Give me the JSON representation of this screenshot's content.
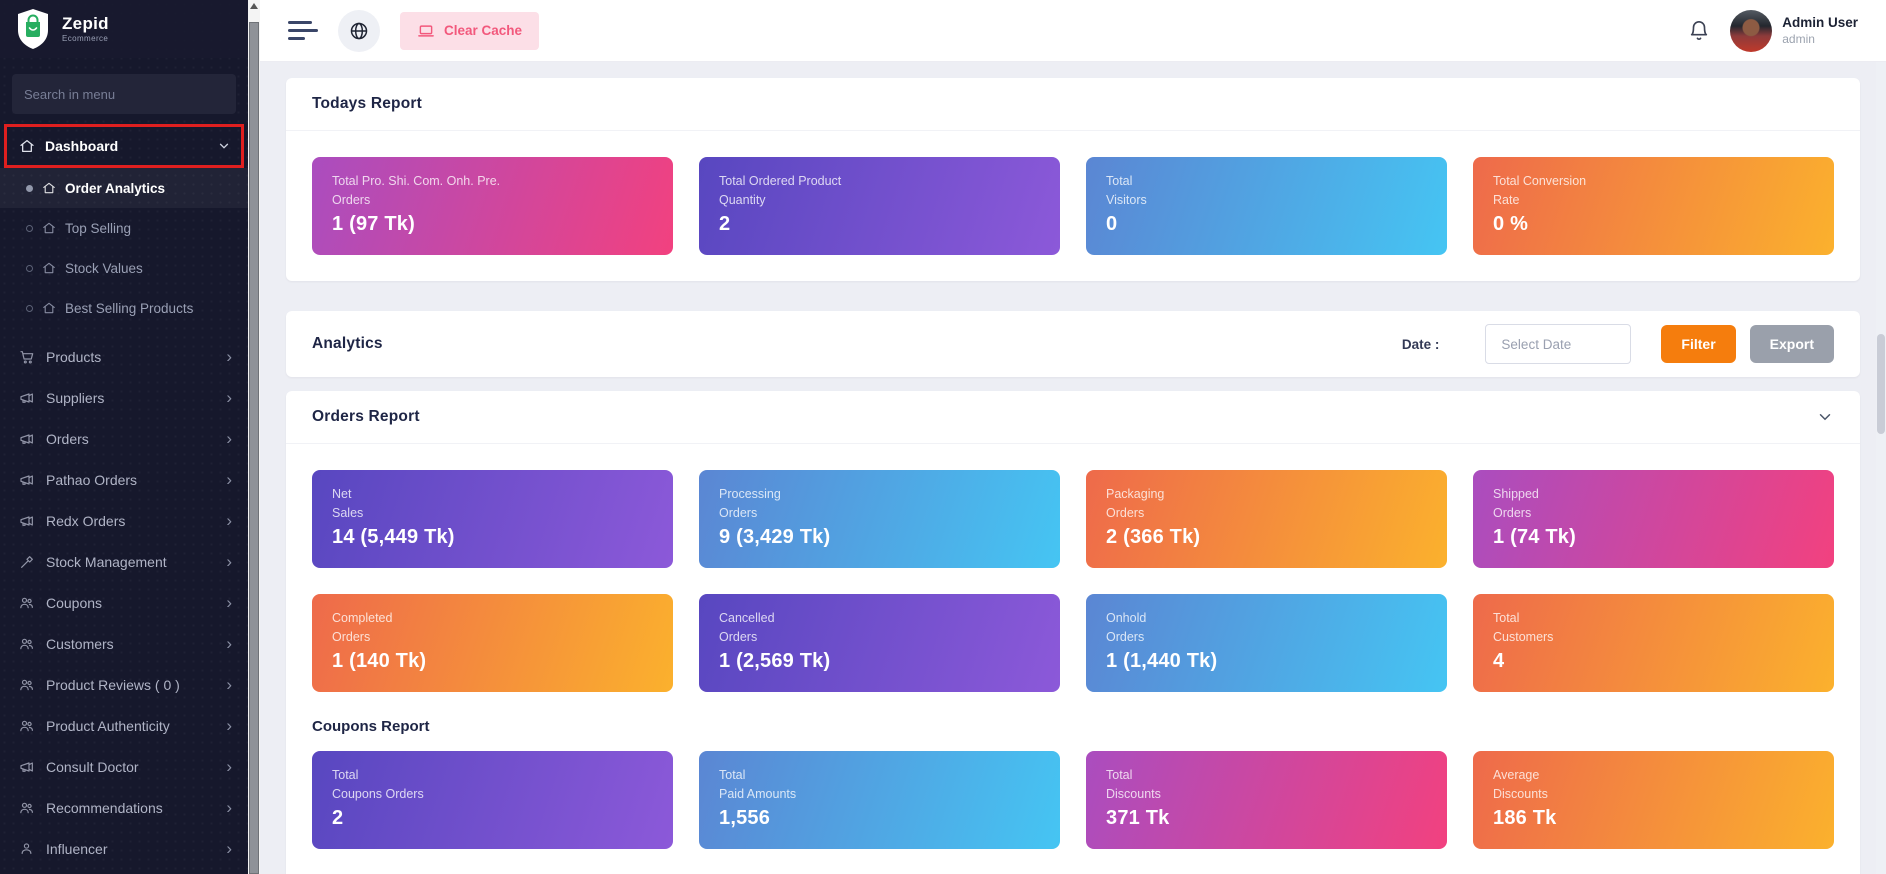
{
  "brand": {
    "name": "Zepid",
    "tagline": "Ecommerce"
  },
  "sidebar": {
    "search_placeholder": "Search in menu",
    "dashboard_label": "Dashboard",
    "dashboard_children": [
      {
        "label": "Order Analytics",
        "icon": "home-icon",
        "state": "active"
      },
      {
        "label": "Top Selling",
        "icon": "home-icon",
        "state": ""
      },
      {
        "label": "Stock Values",
        "icon": "home-icon",
        "state": ""
      },
      {
        "label": "Best Selling Products",
        "icon": "home-icon",
        "state": ""
      }
    ],
    "items": [
      {
        "label": "Products",
        "icon": "cart-icon"
      },
      {
        "label": "Suppliers",
        "icon": "megaphone-icon"
      },
      {
        "label": "Orders",
        "icon": "megaphone-icon"
      },
      {
        "label": "Pathao Orders",
        "icon": "megaphone-icon"
      },
      {
        "label": "Redx Orders",
        "icon": "megaphone-icon"
      },
      {
        "label": "Stock Management",
        "icon": "tool-icon"
      },
      {
        "label": "Coupons",
        "icon": "people-icon"
      },
      {
        "label": "Customers",
        "icon": "people-icon"
      },
      {
        "label": "Product Reviews ( 0 )",
        "icon": "people-icon"
      },
      {
        "label": "Product Authenticity",
        "icon": "people-icon"
      },
      {
        "label": "Consult Doctor",
        "icon": "megaphone-icon"
      },
      {
        "label": "Recommendations",
        "icon": "people-icon"
      },
      {
        "label": "Influencer",
        "icon": "person-icon"
      }
    ]
  },
  "topbar": {
    "clear_cache_label": "Clear Cache",
    "user_name": "Admin User",
    "user_role": "admin"
  },
  "todays_report": {
    "title": "Todays Report",
    "cards": [
      {
        "line1": "Total Pro. Shi. Com. Onh. Pre.",
        "line2": "Orders",
        "value": "1 (97 Tk)",
        "color": "g-pink"
      },
      {
        "line1": "Total Ordered Product",
        "line2": "Quantity",
        "value": "2",
        "color": "g-purple"
      },
      {
        "line1": "Total",
        "line2": "Visitors",
        "value": "0",
        "color": "g-blue"
      },
      {
        "line1": "Total Conversion",
        "line2": "Rate",
        "value": "0 %",
        "color": "g-orange"
      }
    ]
  },
  "analytics": {
    "title": "Analytics",
    "date_label": "Date :",
    "date_placeholder": "Select Date",
    "filter_label": "Filter",
    "export_label": "Export"
  },
  "orders_report": {
    "title": "Orders Report",
    "cards_row1": [
      {
        "line1": "Net",
        "line2": "Sales",
        "value": "14 (5,449 Tk)",
        "color": "g-purple"
      },
      {
        "line1": "Processing",
        "line2": "Orders",
        "value": "9 (3,429 Tk)",
        "color": "g-blue"
      },
      {
        "line1": "Packaging",
        "line2": "Orders",
        "value": "2 (366 Tk)",
        "color": "g-orange"
      },
      {
        "line1": "Shipped",
        "line2": "Orders",
        "value": "1 (74 Tk)",
        "color": "g-pink"
      }
    ],
    "cards_row2": [
      {
        "line1": "Completed",
        "line2": "Orders",
        "value": "1 (140 Tk)",
        "color": "g-orange"
      },
      {
        "line1": "Cancelled",
        "line2": "Orders",
        "value": "1 (2,569 Tk)",
        "color": "g-purple"
      },
      {
        "line1": "Onhold",
        "line2": "Orders",
        "value": "1 (1,440 Tk)",
        "color": "g-blue"
      },
      {
        "line1": "Total",
        "line2": "Customers",
        "value": "4",
        "color": "g-orange"
      }
    ]
  },
  "coupons_report": {
    "title": "Coupons Report",
    "cards": [
      {
        "line1": "Total",
        "line2": "Coupons Orders",
        "value": "2",
        "color": "g-purple"
      },
      {
        "line1": "Total",
        "line2": "Paid Amounts",
        "value": "1,556",
        "color": "g-blue"
      },
      {
        "line1": "Total",
        "line2": "Discounts",
        "value": "371 Tk",
        "color": "g-pink"
      },
      {
        "line1": "Average",
        "line2": "Discounts",
        "value": "186 Tk",
        "color": "g-orange"
      }
    ]
  },
  "colors": {
    "sidebar_bg": "#16182c",
    "selection_red": "#df1f1f",
    "accent_orange": "#f57d0d",
    "export_gray": "#9aa0ab",
    "clear_cache_pink": "#f2587c",
    "gradient_pink": [
      "#aa4dbf",
      "#f2417f"
    ],
    "gradient_purple": [
      "#5847c0",
      "#8c59d9"
    ],
    "gradient_blue": [
      "#5b86d3",
      "#45c5f3"
    ],
    "gradient_orange": [
      "#ee6a4b",
      "#fbb12d"
    ]
  }
}
